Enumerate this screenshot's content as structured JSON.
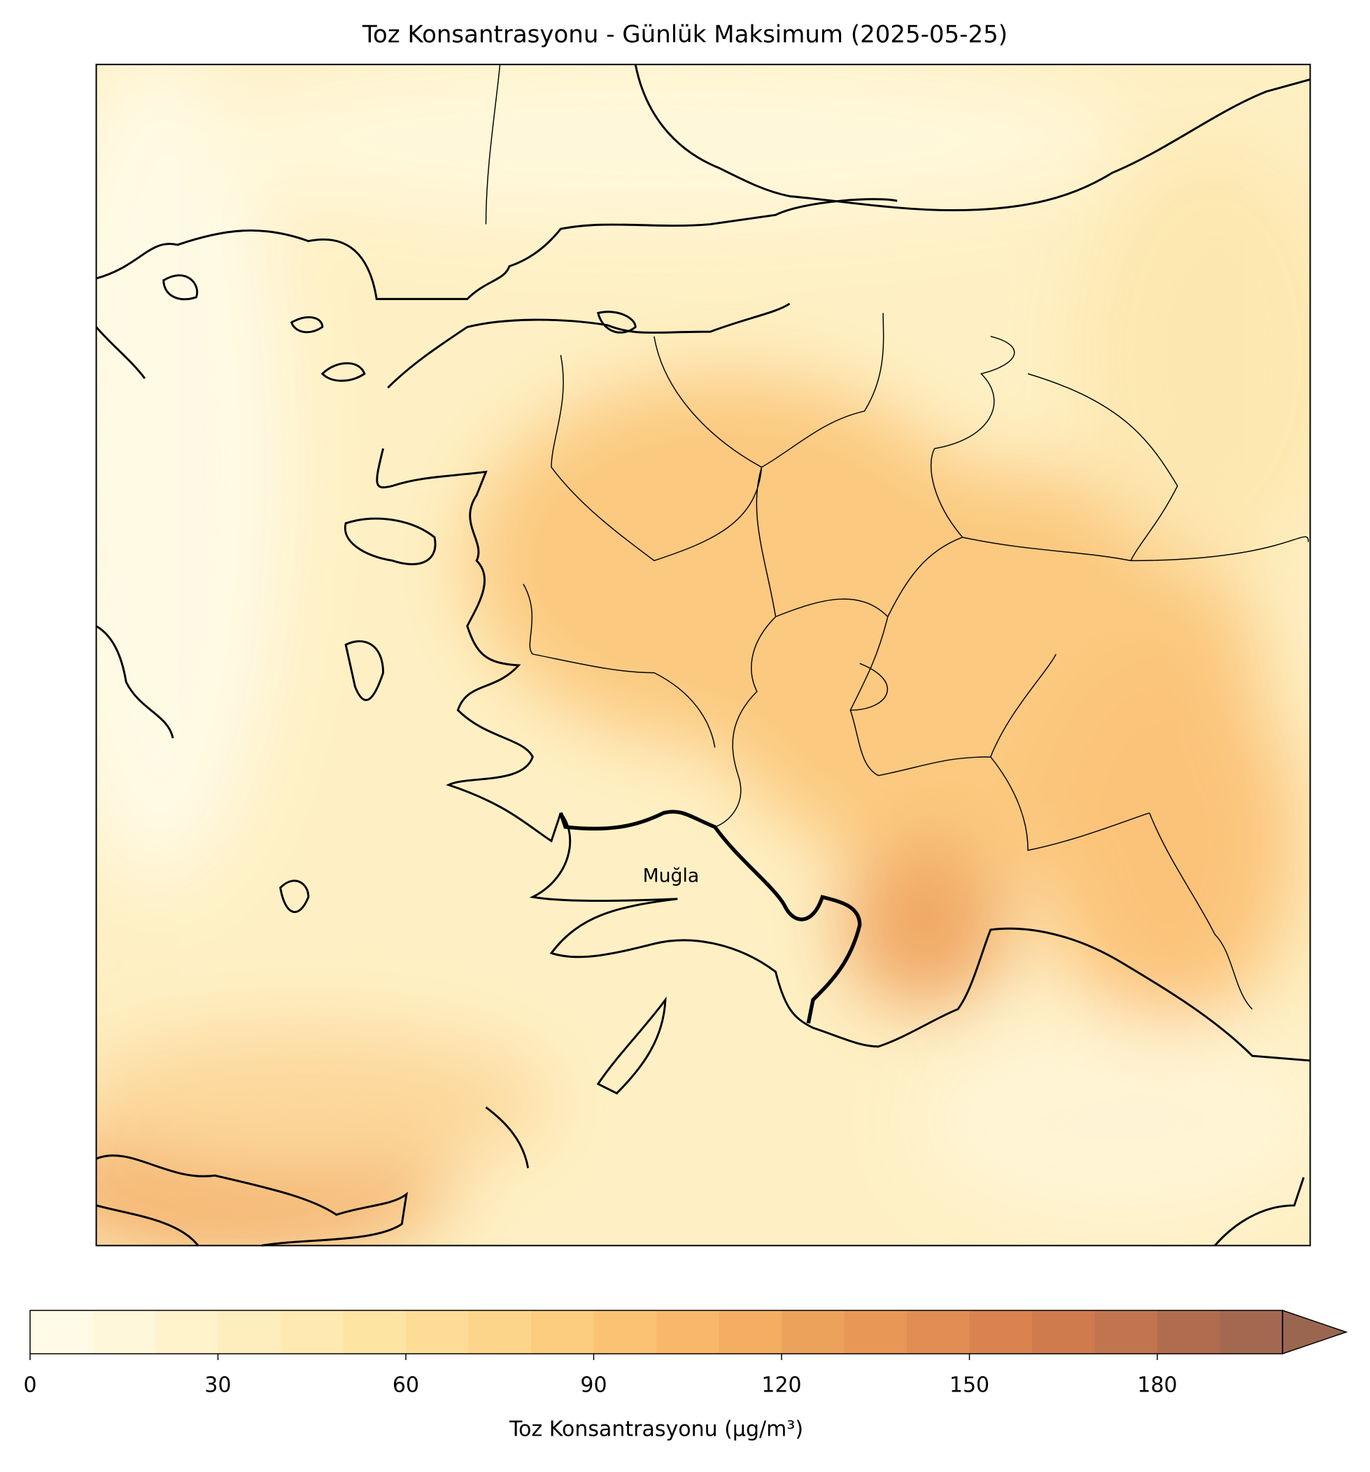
{
  "map": {
    "title": "Toz Konsantrasyonu - Günlük Maksimum (2025-05-25)",
    "annotation": "Muğla",
    "colorbar": {
      "label": "Toz Konsantrasyonu (µg/m³)",
      "lim": [
        0,
        200
      ],
      "ticks": [
        0,
        30,
        60,
        90,
        120,
        150,
        180
      ],
      "levels": [
        0,
        10,
        20,
        30,
        40,
        50,
        60,
        70,
        80,
        90,
        100,
        110,
        120,
        130,
        140,
        150,
        160,
        170,
        180,
        190,
        200
      ],
      "colors": [
        "#fffbe6",
        "#fff7d9",
        "#fef3cb",
        "#feeebd",
        "#feeab0",
        "#fee4a3",
        "#fddd96",
        "#fdd58a",
        "#fccc7f",
        "#fbc273",
        "#f9b869",
        "#f4ad61",
        "#eda25c",
        "#e89757",
        "#e28d53",
        "#da834f",
        "#cf7b4e",
        "#c1744e",
        "#b16c4f",
        "#a26850"
      ],
      "extend": "max",
      "over_color": "#9a6650"
    }
  }
}
